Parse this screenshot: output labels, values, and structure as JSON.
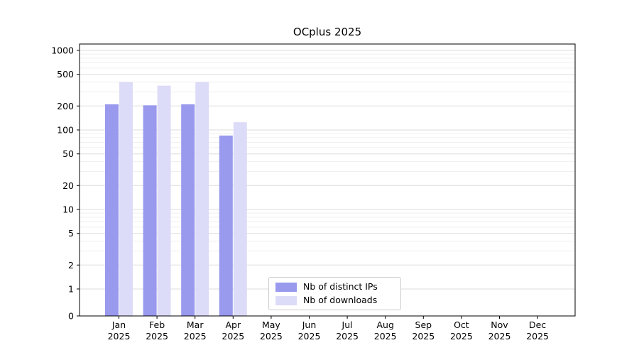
{
  "title": "OCplus 2025",
  "colors": {
    "bar_distinct_ips": "#9999ee",
    "bar_downloads": "#dcdcf8",
    "grid_major": "#dddddd",
    "grid_minor": "#efefef",
    "axis": "#000000",
    "legend_border": "#cccccc",
    "background": "#ffffff"
  },
  "chart_data": {
    "type": "bar",
    "title": "OCplus 2025",
    "xlabel": "",
    "ylabel": "",
    "yscale": "symlog",
    "ylim": [
      0,
      1200
    ],
    "grid": true,
    "legend_position": "lower center",
    "yticks": [
      0,
      1,
      2,
      5,
      10,
      20,
      50,
      100,
      200,
      500,
      1000
    ],
    "categories": [
      "Jan 2025",
      "Feb 2025",
      "Mar 2025",
      "Apr 2025",
      "May 2025",
      "Jun 2025",
      "Jul 2025",
      "Aug 2025",
      "Sep 2025",
      "Oct 2025",
      "Nov 2025",
      "Dec 2025"
    ],
    "series": [
      {
        "name": "Nb of distinct IPs",
        "color": "#9999ee",
        "values": [
          210,
          204,
          210,
          85,
          0,
          0,
          0,
          0,
          0,
          0,
          0,
          0
        ]
      },
      {
        "name": "Nb of downloads",
        "color": "#dcdcf8",
        "values": [
          400,
          360,
          400,
          125,
          0,
          0,
          0,
          0,
          0,
          0,
          0,
          0
        ]
      }
    ]
  }
}
